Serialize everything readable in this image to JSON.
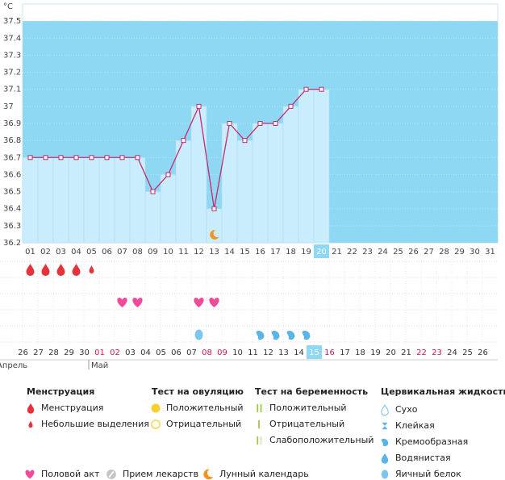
{
  "chart_data": {
    "type": "line",
    "unit": "°C",
    "categories": [
      "01",
      "02",
      "03",
      "04",
      "05",
      "06",
      "07",
      "08",
      "09",
      "10",
      "11",
      "12",
      "13",
      "14",
      "15",
      "16",
      "17",
      "18",
      "19",
      "20",
      "21",
      "22",
      "23",
      "24",
      "25",
      "26",
      "27",
      "28",
      "29",
      "30",
      "31"
    ],
    "values": [
      36.7,
      36.7,
      36.7,
      36.7,
      36.7,
      36.7,
      36.7,
      36.7,
      36.5,
      36.6,
      36.8,
      37.0,
      36.4,
      36.9,
      36.8,
      36.9,
      36.9,
      37.0,
      37.1,
      37.1,
      null,
      null,
      null,
      null,
      null,
      null,
      null,
      null,
      null,
      null,
      null
    ],
    "line_color": "#c8286e",
    "bar_color": "#c9edfc",
    "background_color": "#8fd8f4",
    "ylim": [
      36.2,
      37.6
    ],
    "yticks": [
      36.2,
      36.3,
      36.4,
      36.5,
      36.6,
      36.7,
      36.8,
      36.9,
      37,
      37.1,
      37.2,
      37.3,
      37.4,
      37.5
    ],
    "grid": true,
    "current_day": "20",
    "current_cycle_day": "15",
    "moon_day": "13",
    "symbol_rows": [
      {
        "symbol": "drop",
        "days": [
          "01",
          "02",
          "03",
          "04"
        ]
      },
      {
        "symbol": "small-drop",
        "days": [
          "05"
        ]
      },
      {
        "symbol": "heart",
        "days": [
          "07",
          "08",
          "12",
          "13"
        ]
      },
      {
        "symbol": "egg-white",
        "days": [
          "12"
        ]
      },
      {
        "symbol": "creamy",
        "days": [
          "16",
          "17",
          "18",
          "19"
        ]
      }
    ],
    "cycle_days": [
      "26",
      "27",
      "28",
      "29",
      "30",
      "01",
      "02",
      "03",
      "04",
      "05",
      "06",
      "07",
      "08",
      "09",
      "10",
      "11",
      "12",
      "13",
      "14",
      "15",
      "16",
      "17",
      "18",
      "19",
      "20",
      "21",
      "22",
      "23",
      "24",
      "25",
      "26"
    ],
    "cycle_day_colors": [
      "#333",
      "#333",
      "#333",
      "#333",
      "#333",
      "#d0144c",
      "#d0144c",
      "#333",
      "#333",
      "#333",
      "#333",
      "#333",
      "#d0144c",
      "#d0144c",
      "#333",
      "#333",
      "#333",
      "#333",
      "#333",
      "#333",
      "#d0144c",
      "#333",
      "#333",
      "#333",
      "#333",
      "#333",
      "#d0144c",
      "#d0144c",
      "#333",
      "#333",
      "#333"
    ],
    "months": [
      {
        "label": "Апрель",
        "start": 0
      },
      {
        "label": "Май",
        "start": 5
      }
    ]
  },
  "legend": {
    "groups": [
      {
        "title": "Менструация",
        "items": [
          {
            "label": "Менструация",
            "symbol": "drop"
          },
          {
            "label": "Небольшие выделения",
            "symbol": "small-drop"
          }
        ]
      },
      {
        "title": "Тест на овуляцию",
        "items": [
          {
            "label": "Положительный",
            "symbol": "yellow-circle"
          },
          {
            "label": "Отрицательный",
            "symbol": "empty-circle"
          }
        ]
      },
      {
        "title": "Тест на беременность",
        "items": [
          {
            "label": "Положительный",
            "symbol": "two-bars"
          },
          {
            "label": "Отрицательный",
            "symbol": "one-bar"
          },
          {
            "label": "Слабоположительный",
            "symbol": "weak-bars"
          }
        ]
      },
      {
        "title": "Цервикальная жидкость",
        "items": [
          {
            "label": "Сухо",
            "symbol": "dry"
          },
          {
            "label": "Клейкая",
            "symbol": "sticky"
          },
          {
            "label": "Кремообразная",
            "symbol": "creamy"
          },
          {
            "label": "Водянистая",
            "symbol": "watery"
          },
          {
            "label": "Яичный белок",
            "symbol": "egg-white"
          }
        ]
      }
    ],
    "extra": [
      {
        "label": "Половой акт",
        "symbol": "heart"
      },
      {
        "label": "Прием лекарств",
        "symbol": "pill"
      },
      {
        "label": "Лунный календарь",
        "symbol": "moon"
      }
    ]
  }
}
